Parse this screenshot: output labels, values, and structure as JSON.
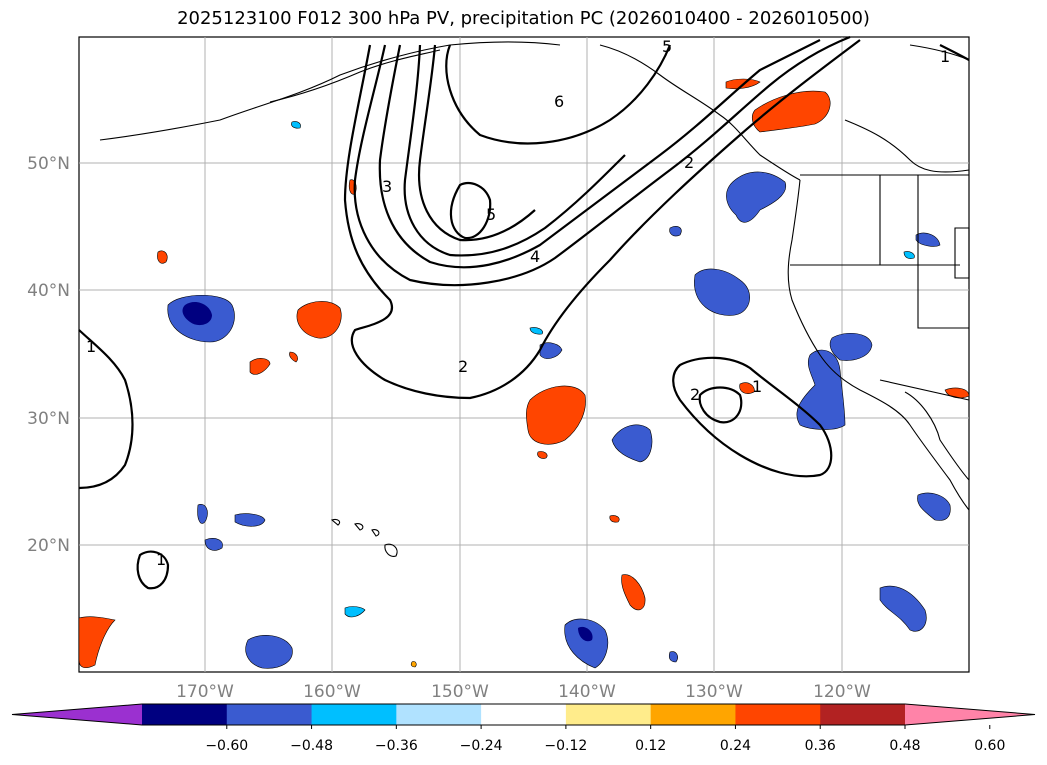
{
  "title": "2025123100 F012 300 hPa PV, precipitation PC (2026010400 - 2026010500)",
  "lat_labels": [
    "50°N",
    "40°N",
    "30°N",
    "20°N"
  ],
  "lon_labels": [
    "170°W",
    "160°W",
    "150°W",
    "140°W",
    "130°W",
    "120°W"
  ],
  "contour_labels": [
    "5",
    "6",
    "3",
    "5",
    "4",
    "2",
    "2",
    "1",
    "2",
    "1",
    "1",
    "1"
  ],
  "colorbar": {
    "ticks": [
      "−0.60",
      "−0.48",
      "−0.36",
      "−0.24",
      "−0.12",
      "0.12",
      "0.24",
      "0.36",
      "0.48",
      "0.60"
    ],
    "colors": [
      "#9b30d0",
      "#000080",
      "#3a5bd0",
      "#00bfff",
      "#b0e2ff",
      "#ffffff",
      "#ffec8b",
      "#ffa500",
      "#ff4500",
      "#b22222",
      "#ff83a8"
    ]
  },
  "colors": {
    "negative_strong": "#000080",
    "negative_mid": "#3a5bd0",
    "negative_light": "#00bfff",
    "positive_mid": "#ff4500",
    "positive_light": "#ffa500",
    "grid": "#b0b0b0"
  }
}
